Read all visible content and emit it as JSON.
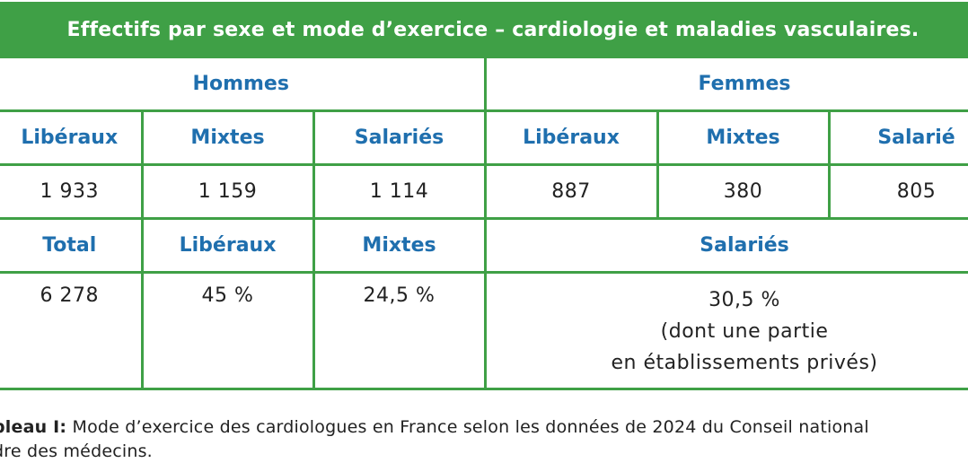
{
  "title": "Effectifs par sexe et mode d’exercice – cardiologie et maladies vasculaires.",
  "groups": {
    "hommes": "Hommes",
    "femmes": "Femmes"
  },
  "subheaders": {
    "hommes": [
      "Libéraux",
      "Mixtes",
      "Salariés"
    ],
    "femmes": [
      "Libéraux",
      "Mixtes",
      "Salarié"
    ]
  },
  "counts": {
    "hommes": [
      "1 933",
      "1 159",
      "1 114"
    ],
    "femmes": [
      "887",
      "380",
      "805"
    ]
  },
  "totals_header": {
    "total": "Total",
    "liberaux": "Libéraux",
    "mixtes": "Mixtes",
    "salaries": "Salariés"
  },
  "totals_values": {
    "total": "6 278",
    "liberaux": "45 %",
    "mixtes": "24,5 %",
    "salaries_lines": [
      "30,5 %",
      "(dont une partie",
      "en établissements privés)"
    ]
  },
  "caption": {
    "lead": "bleau I:",
    "line1": " Mode d’exercice des cardiologues en France selon les données de 2024 du Conseil national",
    "line2": "dre des médecins."
  },
  "colors": {
    "accent_green": "#3fa046",
    "header_blue": "#1f6fae"
  }
}
